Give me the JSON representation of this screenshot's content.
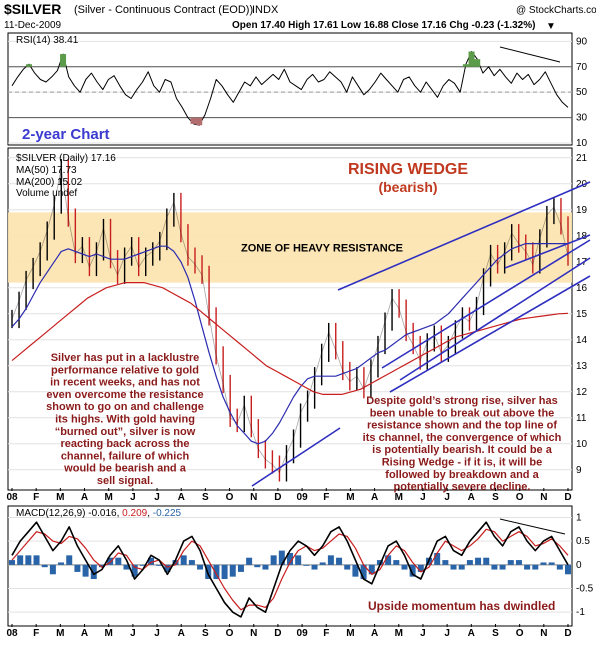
{
  "header": {
    "symbol": "$SILVER",
    "name": "(Silver - Continuous Contract (EOD))",
    "exchange": "INDX",
    "copyright": "@ StockCharts.com",
    "date": "11-Dec-2009",
    "ohlc": "Open 17.40  High 17.61  Low 16.88  Close 17.16  Chg -0.23 (-1.32%)",
    "chg_arrow": "▼"
  },
  "chart_data": [
    {
      "type": "line",
      "panel": "RSI",
      "legend": "RSI(14) 38.41",
      "yticks": [
        10,
        30,
        50,
        70,
        90
      ],
      "ylim": [
        10,
        95
      ],
      "levels": [
        30,
        70
      ],
      "x_start": "2008-01",
      "x_end": "2009-12",
      "values": [
        55,
        62,
        68,
        72,
        65,
        60,
        58,
        62,
        67,
        80,
        62,
        55,
        50,
        60,
        65,
        58,
        52,
        60,
        63,
        55,
        48,
        45,
        52,
        58,
        66,
        55,
        50,
        60,
        58,
        45,
        38,
        30,
        25,
        24,
        32,
        45,
        60,
        55,
        48,
        42,
        50,
        58,
        55,
        62,
        56,
        60,
        64,
        60,
        68,
        58,
        55,
        52,
        60,
        64,
        58,
        60,
        66,
        62,
        58,
        50,
        62,
        55,
        48,
        52,
        58,
        65,
        60,
        55,
        50,
        60,
        62,
        55,
        50,
        58,
        52,
        46,
        55,
        60,
        57,
        50,
        72,
        82,
        76,
        65,
        70,
        63,
        68,
        62,
        57,
        65,
        60,
        64,
        56,
        60,
        66,
        57,
        48,
        42,
        38
      ]
    },
    {
      "type": "line",
      "panel": "price",
      "title_overlay": "2-year Chart",
      "legend": [
        "$SILVER (Daily) 17.16",
        "MA(50) 17.73",
        "MA(200) 15.02",
        "Volume undef"
      ],
      "yticks": [
        9,
        10,
        11,
        12,
        13,
        14,
        15,
        16,
        17,
        18,
        19,
        20,
        21
      ],
      "ylim": [
        8.3,
        21.3
      ],
      "x_start": "2008-01",
      "x_end": "2009-12",
      "series": [
        {
          "name": "$SILVER (Daily) 17.16",
          "color": "#000000",
          "values": [
            14.8,
            15.5,
            16.3,
            16.8,
            17.4,
            18.2,
            19.2,
            20.6,
            18.7,
            17.3,
            17.6,
            16.8,
            17.4,
            18.3,
            17.1,
            16.5,
            17.2,
            17.6,
            16.8,
            17.2,
            17.4,
            17.8,
            18.7,
            19.3,
            18.1,
            17.2,
            16.9,
            16.5,
            14.9,
            13.4,
            12.3,
            11.0,
            10.8,
            11.5,
            10.6,
            9.8,
            9.4,
            9.2,
            8.9,
            9.6,
            10.2,
            11.2,
            11.7,
            12.6,
            13.5,
            14.3,
            13.6,
            12.8,
            12.4,
            12.6,
            12.1,
            12.9,
            13.8,
            14.7,
            15.6,
            15.2,
            14.3,
            13.8,
            13.2,
            13.9,
            14.2,
            13.5,
            13.8,
            14.4,
            14.9,
            14.7,
            15.3,
            16.4,
            17.3,
            16.9,
            17.4,
            18.1,
            17.7,
            17.4,
            16.9,
            17.9,
            18.8,
            19.1,
            18.4,
            17.2
          ]
        },
        {
          "name": "MA(50) 17.73",
          "color": "#2b2bb0",
          "values": [
            14.5,
            14.8,
            15.2,
            15.7,
            16.2,
            16.6,
            17.0,
            17.4,
            17.5,
            17.4,
            17.3,
            17.2,
            17.3,
            17.2,
            17.1,
            17.1,
            17.1,
            17.2,
            17.3,
            17.4,
            17.5,
            17.6,
            17.6,
            17.4,
            17.0,
            16.4,
            15.5,
            14.5,
            13.5,
            12.6,
            11.8,
            11.2,
            10.7,
            10.4,
            10.1,
            10.0,
            10.1,
            10.4,
            10.8,
            11.3,
            11.8,
            12.2,
            12.5,
            12.6,
            12.6,
            12.6,
            12.6,
            12.7,
            12.8,
            12.9,
            13.1,
            13.3,
            13.5,
            13.6,
            13.8,
            14.0,
            14.2,
            14.3,
            14.4,
            14.5,
            14.6,
            14.8,
            15.0,
            15.3,
            15.6,
            15.9,
            16.2,
            16.5,
            16.8,
            17.1,
            17.3,
            17.5,
            17.6,
            17.7,
            17.7,
            17.7,
            17.7,
            17.7,
            17.7,
            17.7
          ]
        },
        {
          "name": "MA(200) 15.02",
          "color": "#c81e1e",
          "values": [
            13.2,
            13.5,
            13.8,
            14.1,
            14.4,
            14.7,
            15.0,
            15.3,
            15.6,
            15.8,
            16.0,
            16.1,
            16.2,
            16.2,
            16.2,
            16.1,
            16.0,
            15.8,
            15.6,
            15.4,
            15.1,
            14.8,
            14.5,
            14.2,
            13.9,
            13.6,
            13.3,
            13.0,
            12.8,
            12.6,
            12.4,
            12.2,
            12.0,
            11.9,
            11.9,
            11.9,
            12.0,
            12.1,
            12.3,
            12.5,
            12.7,
            12.9,
            13.1,
            13.3,
            13.5,
            13.7,
            13.9,
            14.1,
            14.2,
            14.3,
            14.4,
            14.5,
            14.6,
            14.7,
            14.8,
            14.85,
            14.9,
            14.95,
            15.0,
            15.02
          ]
        }
      ],
      "zone": {
        "label": "ZONE OF HEAVY RESISTANCE",
        "from": 16.2,
        "to": 18.9
      },
      "pattern_title": [
        "RISING WEDGE",
        "(bearish)"
      ],
      "annotation_left": [
        "Silver has put in a lacklustre",
        "performance relative to gold",
        "in recent weeks, and has not",
        "even overcome the resistance",
        "shown to go on and challenge",
        "its highs. With gold having",
        "“burned out”, silver is now",
        "reacting back across the",
        "channel, failure of which",
        "would be bearish and a",
        "sell signal."
      ],
      "annotation_right": [
        "Despite gold’s strong rise, silver has",
        "been unable to break out above the",
        "resistance shown and the top line of",
        "its channel, the convergence of which",
        "is potentially bearish. It could be a",
        "Rising Wedge - if it is, it will be",
        "followed by breakdown and a",
        "potentially severe decline."
      ]
    },
    {
      "type": "line",
      "panel": "MACD",
      "legend": {
        "label": "MACD(12,26,9)",
        "v1": "-0.016",
        "v2": "0.209",
        "v3": "-0.225"
      },
      "yticks": [
        -1.0,
        -0.5,
        0.0,
        0.5,
        1.0
      ],
      "ylim": [
        -1.25,
        1.2
      ],
      "x_start": "2008-01",
      "x_end": "2009-12",
      "series": [
        {
          "name": "MACD",
          "color": "#000000",
          "values": [
            0.2,
            0.5,
            0.7,
            0.9,
            0.6,
            0.3,
            0.5,
            0.8,
            0.4,
            0.1,
            -0.2,
            -0.1,
            0.2,
            0.4,
            0.1,
            -0.3,
            -0.1,
            0.2,
            0.1,
            -0.2,
            0.1,
            0.5,
            0.6,
            0.3,
            -0.2,
            -0.5,
            -0.8,
            -1.0,
            -1.1,
            -0.7,
            -0.9,
            -1.0,
            -0.5,
            0.0,
            0.3,
            0.5,
            0.4,
            0.2,
            0.4,
            0.7,
            0.8,
            0.5,
            0.1,
            -0.3,
            -0.4,
            0.0,
            0.4,
            0.5,
            0.2,
            -0.2,
            -0.3,
            0.1,
            0.5,
            0.6,
            0.3,
            0.2,
            0.5,
            0.7,
            0.9,
            0.6,
            0.4,
            0.7,
            0.8,
            0.5,
            0.3,
            0.5,
            0.6,
            0.3,
            0.0
          ]
        },
        {
          "name": "Signal",
          "color": "#c81e1e",
          "values": [
            0.1,
            0.3,
            0.5,
            0.7,
            0.65,
            0.5,
            0.45,
            0.6,
            0.55,
            0.35,
            0.1,
            -0.05,
            0.05,
            0.25,
            0.2,
            -0.05,
            -0.1,
            0.05,
            0.1,
            -0.05,
            0.0,
            0.3,
            0.5,
            0.4,
            0.1,
            -0.2,
            -0.5,
            -0.75,
            -0.95,
            -0.85,
            -0.85,
            -0.9,
            -0.7,
            -0.3,
            0.05,
            0.3,
            0.4,
            0.3,
            0.35,
            0.5,
            0.65,
            0.6,
            0.35,
            0.0,
            -0.2,
            -0.1,
            0.2,
            0.4,
            0.3,
            0.05,
            -0.15,
            -0.05,
            0.25,
            0.5,
            0.4,
            0.3,
            0.4,
            0.55,
            0.75,
            0.7,
            0.5,
            0.6,
            0.7,
            0.6,
            0.4,
            0.45,
            0.55,
            0.4,
            0.2
          ]
        }
      ],
      "annotation": "Upside momentum has dwindled"
    }
  ],
  "x_axis": {
    "labels": [
      "08",
      "F",
      "M",
      "A",
      "M",
      "J",
      "J",
      "A",
      "S",
      "O",
      "N",
      "D",
      "09",
      "F",
      "M",
      "A",
      "M",
      "J",
      "J",
      "A",
      "S",
      "O",
      "N",
      "D"
    ],
    "bold_labels": [
      "08",
      "09"
    ]
  },
  "colors": {
    "zone": "#fde3ae",
    "wedge": "#2f2fc0",
    "rsi_up": "#5b9b4a",
    "rsi_down": "#b26e6e",
    "hist": "#2a64a8"
  }
}
